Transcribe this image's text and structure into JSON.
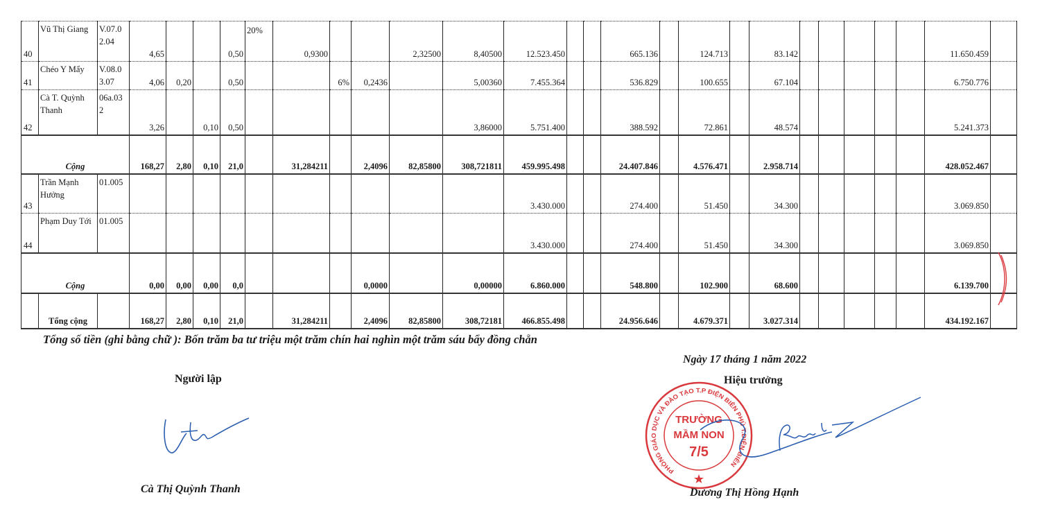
{
  "table": {
    "groups": [
      {
        "rows": [
          {
            "stt": "40",
            "name": "Vũ Thị Giang",
            "code": "V.07.0 2.04",
            "values": [
              "4,65",
              "",
              "",
              "0,50",
              "20%",
              "0,9300",
              "",
              "",
              "2,32500",
              "8,40500",
              "12.523.450",
              "",
              "",
              "665.136",
              "",
              "124.713",
              "",
              "83.142",
              "",
              "",
              "",
              "",
              "",
              "11.650.459",
              ""
            ]
          },
          {
            "stt": "41",
            "name": "Chéo Y Mẩy",
            "code": "V.08.0 3.07",
            "values": [
              "4,06",
              "0,20",
              "",
              "0,50",
              "",
              "",
              "6%",
              "0,2436",
              "",
              "5,00360",
              "7.455.364",
              "",
              "",
              "536.829",
              "",
              "100.655",
              "",
              "67.104",
              "",
              "",
              "",
              "",
              "",
              "6.750.776",
              ""
            ]
          },
          {
            "stt": "42",
            "name": "Cà T. Quỳnh Thanh",
            "code": "06a.03 2",
            "values": [
              "3,26",
              "",
              "0,10",
              "0,50",
              "",
              "",
              "",
              "",
              "",
              "3,86000",
              "5.751.400",
              "",
              "",
              "388.592",
              "",
              "72.861",
              "",
              "48.574",
              "",
              "",
              "",
              "",
              "",
              "5.241.373",
              ""
            ]
          }
        ],
        "subtotal": {
          "label": "Cộng",
          "values": [
            "168,27",
            "2,80",
            "0,10",
            "21,0",
            "",
            "31,284211",
            "",
            "2,4096",
            "82,85800",
            "308,721811",
            "459.995.498",
            "",
            "",
            "24.407.846",
            "",
            "4.576.471",
            "",
            "2.958.714",
            "",
            "",
            "",
            "",
            "",
            "428.052.467",
            ""
          ]
        }
      },
      {
        "rows": [
          {
            "stt": "43",
            "name": "Trần Mạnh Hưởng",
            "code": "01.005",
            "values": [
              "",
              "",
              "",
              "",
              "",
              "",
              "",
              "",
              "",
              "",
              "3.430.000",
              "",
              "",
              "274.400",
              "",
              "51.450",
              "",
              "34.300",
              "",
              "",
              "",
              "",
              "",
              "3.069.850",
              ""
            ]
          },
          {
            "stt": "44",
            "name": "Phạm Duy Tới",
            "code": "01.005",
            "values": [
              "",
              "",
              "",
              "",
              "",
              "",
              "",
              "",
              "",
              "",
              "3.430.000",
              "",
              "",
              "274.400",
              "",
              "51.450",
              "",
              "34.300",
              "",
              "",
              "",
              "",
              "",
              "3.069.850",
              ""
            ]
          }
        ],
        "subtotal": {
          "label": "Cộng",
          "values": [
            "0,00",
            "0,00",
            "0,00",
            "0,0",
            "",
            "",
            "",
            "0,0000",
            "",
            "0,00000",
            "6.860.000",
            "",
            "",
            "548.800",
            "",
            "102.900",
            "",
            "68.600",
            "",
            "",
            "",
            "",
            "",
            "6.139.700",
            ""
          ]
        }
      }
    ],
    "grand_total": {
      "label": "Tổng cộng",
      "values": [
        "168,27",
        "2,80",
        "0,10",
        "21,0",
        "",
        "31,284211",
        "",
        "2,4096",
        "82,85800",
        "308,72181",
        "466.855.498",
        "",
        "",
        "24.956.646",
        "",
        "4.679.371",
        "",
        "3.027.314",
        "",
        "",
        "",
        "",
        "",
        "434.192.167",
        ""
      ]
    }
  },
  "amount_in_words": "Tổng số tiền (ghi bằng chữ ): Bốn trăm ba tư triệu một trăm chín hai nghìn một trăm sáu bẩy đồng chẵn",
  "date_line": "Ngày 17 tháng 1 năm 2022",
  "preparer": {
    "role": "Người lập",
    "name": "Cà Thị Quỳnh Thanh"
  },
  "principal": {
    "role": "Hiệu trưởng",
    "name": "Dương Thị Hồng Hạnh"
  },
  "stamp": {
    "ring_text": "PHÒNG GIÁO DỤC VÀ ĐÀO TẠO T.P ĐIỆN BIÊN PHỦ T.ĐIỆN BIÊN",
    "line1": "TRƯỜNG",
    "line2": "MẦM NON",
    "line3": "7/5"
  },
  "colors": {
    "stamp": "#d9383c",
    "signature_ink": "#2a5db0",
    "text": "#1a1a1a"
  }
}
